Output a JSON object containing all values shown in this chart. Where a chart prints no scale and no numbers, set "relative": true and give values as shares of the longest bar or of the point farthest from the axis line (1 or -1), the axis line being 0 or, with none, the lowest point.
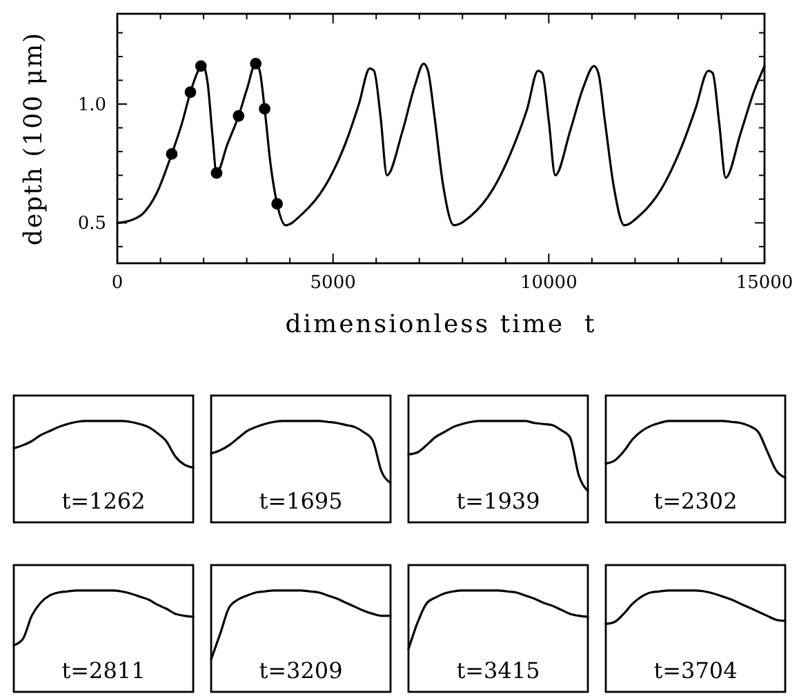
{
  "chart_data": [
    {
      "type": "line",
      "xlabel": "dimensionless time  t",
      "ylabel": "depth (100 μm)",
      "xlim": [
        0,
        15000
      ],
      "ylim": [
        0.33,
        1.38
      ],
      "xticks": [
        0,
        {
          "value": 1000,
          "label": null
        },
        {
          "value": 2000,
          "label": null
        },
        {
          "value": 3000,
          "label": null
        },
        {
          "value": 4000,
          "label": null
        },
        5000,
        {
          "value": 6000,
          "label": null
        },
        {
          "value": 7000,
          "label": null
        },
        {
          "value": 8000,
          "label": null
        },
        {
          "value": 9000,
          "label": null
        },
        10000,
        {
          "value": 11000,
          "label": null
        },
        {
          "value": 12000,
          "label": null
        },
        {
          "value": 13000,
          "label": null
        },
        {
          "value": 14000,
          "label": null
        },
        15000
      ],
      "yticks": [
        {
          "value": 0.4,
          "label": null
        },
        {
          "value": 0.5,
          "label": "0.5"
        },
        {
          "value": 0.6,
          "label": null
        },
        {
          "value": 0.7,
          "label": null
        },
        {
          "value": 0.8,
          "label": null
        },
        {
          "value": 0.9,
          "label": null
        },
        {
          "value": 1.0,
          "label": "1.0"
        },
        {
          "value": 1.1,
          "label": null
        },
        {
          "value": 1.2,
          "label": null
        },
        {
          "value": 1.3,
          "label": null
        }
      ],
      "grid": false,
      "series": [
        {
          "color": "#000000",
          "marker": "none",
          "line_style": "solid",
          "x": [
            0,
            300,
            600,
            900,
            1262,
            1500,
            1695,
            1850,
            1939,
            2020,
            2100,
            2200,
            2302,
            2550,
            2811,
            3000,
            3209,
            3300,
            3415,
            3550,
            3704,
            3900,
            4300,
            4800,
            5300,
            5600,
            5850,
            5950,
            6100,
            6250,
            6600,
            6900,
            7100,
            7200,
            7350,
            7550,
            7800,
            8200,
            8700,
            9200,
            9500,
            9750,
            9850,
            10000,
            10150,
            10500,
            10800,
            11050,
            11150,
            11300,
            11500,
            11750,
            12100,
            12600,
            13100,
            13400,
            13700,
            13800,
            13950,
            14100,
            14450,
            14750,
            15000
          ],
          "values": [
            0.5,
            0.51,
            0.54,
            0.62,
            0.79,
            0.92,
            1.05,
            1.13,
            1.16,
            1.15,
            1.08,
            0.88,
            0.71,
            0.83,
            0.95,
            1.06,
            1.17,
            1.14,
            0.98,
            0.75,
            0.58,
            0.49,
            0.54,
            0.65,
            0.84,
            1.0,
            1.15,
            1.14,
            0.95,
            0.7,
            0.88,
            1.08,
            1.17,
            1.14,
            0.95,
            0.66,
            0.49,
            0.53,
            0.64,
            0.83,
            0.98,
            1.14,
            1.13,
            0.93,
            0.7,
            0.89,
            1.07,
            1.16,
            1.13,
            0.93,
            0.66,
            0.49,
            0.53,
            0.64,
            0.83,
            0.98,
            1.14,
            1.13,
            0.92,
            0.69,
            0.88,
            1.05,
            1.16
          ]
        },
        {
          "type": "scatter",
          "color": "#000000",
          "marker": "circle",
          "x": [
            1262,
            1695,
            1939,
            2302,
            2811,
            3209,
            3415,
            3704
          ],
          "values": [
            0.79,
            1.05,
            1.16,
            0.71,
            0.95,
            1.17,
            0.98,
            0.58
          ]
        }
      ]
    },
    {
      "type": "line",
      "title": "t=1262",
      "relative": true,
      "color": "#000000",
      "categories": [
        null,
        null,
        null,
        null,
        null,
        null,
        null,
        null,
        null,
        null,
        null,
        null,
        null,
        null,
        null,
        null,
        null,
        null,
        null,
        null,
        null
      ],
      "values": [
        0.73,
        0.76,
        0.8,
        0.86,
        0.9,
        0.94,
        0.97,
        0.99,
        1,
        1,
        1,
        1,
        1,
        0.99,
        0.97,
        0.94,
        0.88,
        0.8,
        0.65,
        0.57,
        0.54
      ]
    },
    {
      "type": "line",
      "title": "t=1695",
      "relative": true,
      "color": "#000000",
      "categories": [
        null,
        null,
        null,
        null,
        null,
        null,
        null,
        null,
        null,
        null,
        null,
        null,
        null,
        null,
        null,
        null,
        null,
        null,
        null,
        null,
        null
      ],
      "values": [
        0.68,
        0.71,
        0.76,
        0.83,
        0.9,
        0.94,
        0.97,
        0.99,
        1,
        1,
        1,
        1,
        1,
        0.99,
        0.98,
        0.96,
        0.94,
        0.89,
        0.81,
        0.5,
        0.39
      ]
    },
    {
      "type": "line",
      "title": "t=1939",
      "relative": true,
      "color": "#000000",
      "categories": [
        null,
        null,
        null,
        null,
        null,
        null,
        null,
        null,
        null,
        null,
        null,
        null,
        null,
        null,
        null,
        null,
        null,
        null,
        null,
        null,
        null
      ],
      "values": [
        0.67,
        0.69,
        0.76,
        0.84,
        0.89,
        0.94,
        0.97,
        0.99,
        1,
        1,
        1,
        1,
        1,
        1,
        0.98,
        0.97,
        0.96,
        0.91,
        0.84,
        0.46,
        0.31
      ]
    },
    {
      "type": "line",
      "title": "t=2302",
      "relative": true,
      "color": "#000000",
      "categories": [
        null,
        null,
        null,
        null,
        null,
        null,
        null,
        null,
        null,
        null,
        null,
        null,
        null,
        null,
        null,
        null,
        null,
        null,
        null,
        null,
        null
      ],
      "values": [
        0.58,
        0.61,
        0.7,
        0.82,
        0.9,
        0.95,
        0.98,
        1,
        1,
        1,
        1,
        1,
        1,
        1,
        0.99,
        0.98,
        0.95,
        0.89,
        0.7,
        0.51,
        0.44
      ]
    },
    {
      "type": "line",
      "title": "t=2811",
      "relative": true,
      "color": "#000000",
      "categories": [
        null,
        null,
        null,
        null,
        null,
        null,
        null,
        null,
        null,
        null,
        null,
        null,
        null,
        null,
        null,
        null,
        null,
        null,
        null,
        null,
        null
      ],
      "values": [
        0.46,
        0.52,
        0.75,
        0.88,
        0.95,
        0.98,
        0.99,
        1,
        1,
        1,
        1,
        1,
        0.99,
        0.97,
        0.94,
        0.91,
        0.86,
        0.82,
        0.77,
        0.75,
        0.74
      ]
    },
    {
      "type": "line",
      "title": "t=3209",
      "relative": true,
      "color": "#000000",
      "categories": [
        null,
        null,
        null,
        null,
        null,
        null,
        null,
        null,
        null,
        null,
        null,
        null,
        null,
        null,
        null,
        null,
        null,
        null,
        null,
        null,
        null
      ],
      "values": [
        0.32,
        0.57,
        0.83,
        0.91,
        0.95,
        0.98,
        0.99,
        1,
        1,
        1,
        1,
        0.99,
        0.98,
        0.95,
        0.92,
        0.88,
        0.84,
        0.8,
        0.77,
        0.75,
        0.75
      ]
    },
    {
      "type": "line",
      "title": "t=3415",
      "relative": true,
      "color": "#000000",
      "categories": [
        null,
        null,
        null,
        null,
        null,
        null,
        null,
        null,
        null,
        null,
        null,
        null,
        null,
        null,
        null,
        null,
        null,
        null,
        null,
        null,
        null
      ],
      "values": [
        0.42,
        0.68,
        0.87,
        0.93,
        0.97,
        0.99,
        1,
        1,
        1,
        1,
        1,
        0.99,
        0.98,
        0.95,
        0.92,
        0.88,
        0.85,
        0.81,
        0.77,
        0.75,
        0.74
      ]
    },
    {
      "type": "line",
      "title": "t=3704",
      "relative": true,
      "color": "#000000",
      "categories": [
        null,
        null,
        null,
        null,
        null,
        null,
        null,
        null,
        null,
        null,
        null,
        null,
        null,
        null,
        null,
        null,
        null,
        null,
        null,
        null,
        null
      ],
      "values": [
        0.67,
        0.69,
        0.77,
        0.87,
        0.94,
        0.98,
        0.99,
        1,
        1,
        1,
        1,
        0.99,
        0.97,
        0.94,
        0.91,
        0.87,
        0.83,
        0.79,
        0.75,
        0.71,
        0.7
      ]
    }
  ]
}
